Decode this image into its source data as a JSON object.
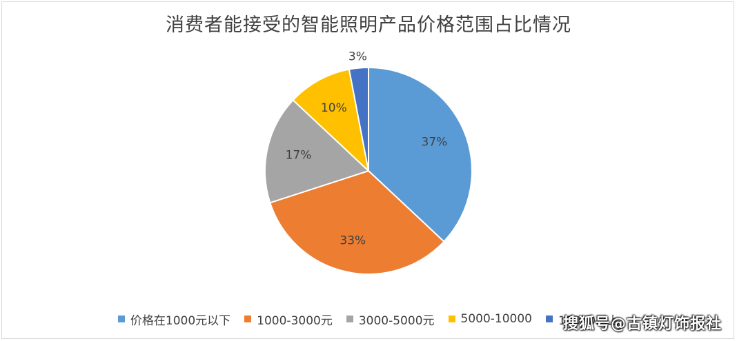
{
  "chart_data": {
    "type": "pie",
    "title": "消费者能接受的智能照明产品价格范围占比情况",
    "categories": [
      "价格在1000元以下",
      "1000-3000元",
      "3000-5000元",
      "5000-10000",
      "10000以上"
    ],
    "values": [
      37,
      33,
      17,
      10,
      3
    ],
    "labels": [
      "37%",
      "33%",
      "17%",
      "10%",
      "3%"
    ],
    "colors": [
      "#5b9bd5",
      "#ed7d31",
      "#a5a5a5",
      "#ffc000",
      "#4472c4"
    ],
    "legend_position": "bottom"
  },
  "watermark": "搜狐号@古镇灯饰报社"
}
